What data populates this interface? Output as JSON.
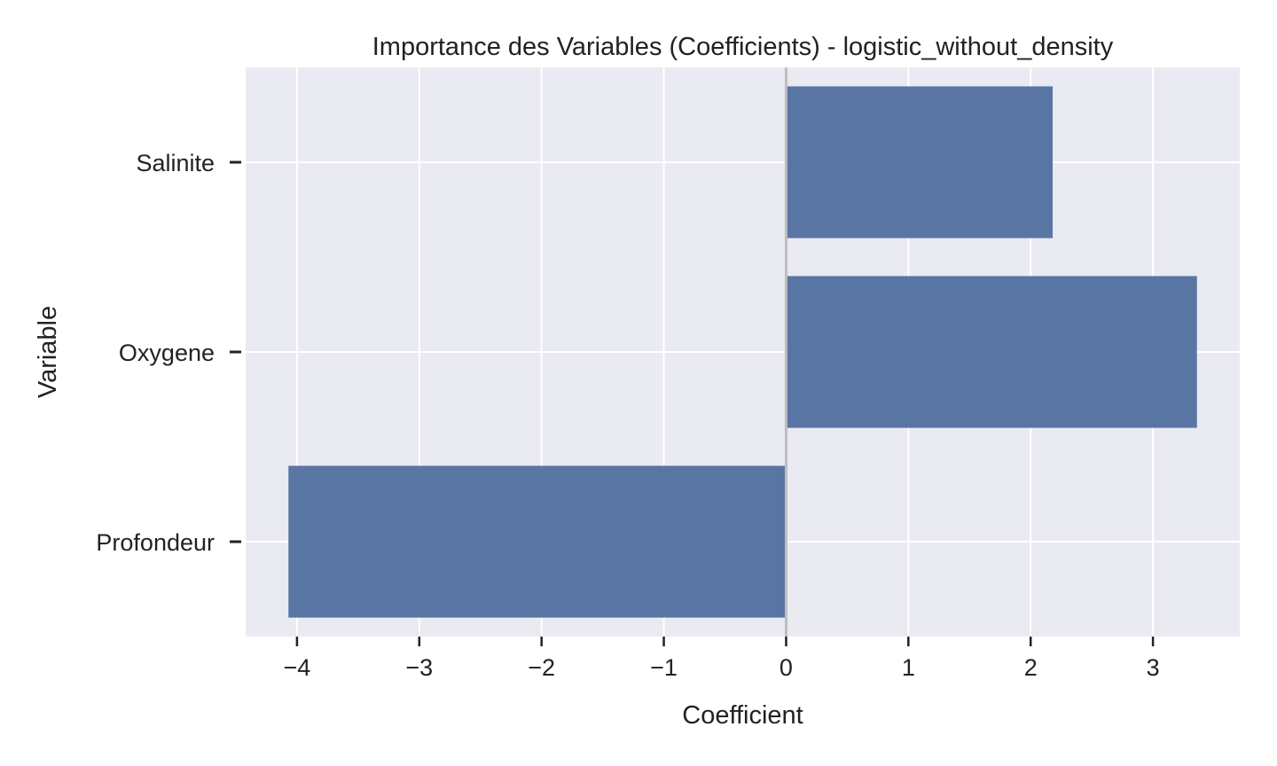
{
  "chart_data": {
    "type": "bar",
    "orientation": "horizontal",
    "title": "Importance des Variables (Coefficients) - logistic_without_density",
    "xlabel": "Coefficient",
    "ylabel": "Variable",
    "categories": [
      "Salinite",
      "Oxygene",
      "Profondeur"
    ],
    "values": [
      2.18,
      3.36,
      -4.07
    ],
    "xlim": [
      -4.42,
      3.71
    ],
    "xticks": [
      -4,
      -3,
      -2,
      -1,
      0,
      1,
      2,
      3
    ],
    "xtick_labels": [
      "−4",
      "−3",
      "−2",
      "−1",
      "0",
      "1",
      "2",
      "3"
    ],
    "zero_line": true,
    "grid": true,
    "colors": {
      "bar": "#5975a4",
      "plot_background": "#eaeaf2",
      "grid": "#ffffff",
      "zero_line": "#bdbdbd",
      "text": "#222222"
    }
  }
}
